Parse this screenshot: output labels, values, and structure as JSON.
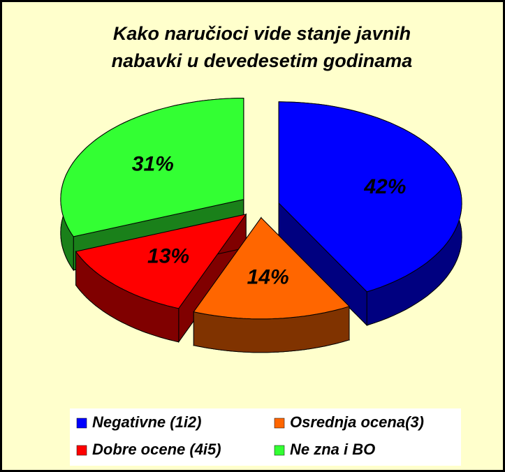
{
  "chart_data": {
    "type": "pie3d",
    "title": [
      "Kako naručioci vide stanje javnih",
      "nabavki u devedesetim godinama"
    ],
    "categories": [
      "Negativne (1i2)",
      "Osrednja ocena(3)",
      "Dobre ocene (4i5)",
      "Ne zna i BO"
    ],
    "values": [
      42,
      14,
      13,
      31
    ],
    "value_labels": [
      "42%",
      "14%",
      "13%",
      "31%"
    ],
    "colors": [
      "#0000ff",
      "#ff6600",
      "#ff0000",
      "#33ff33"
    ],
    "legend": "bottom"
  }
}
